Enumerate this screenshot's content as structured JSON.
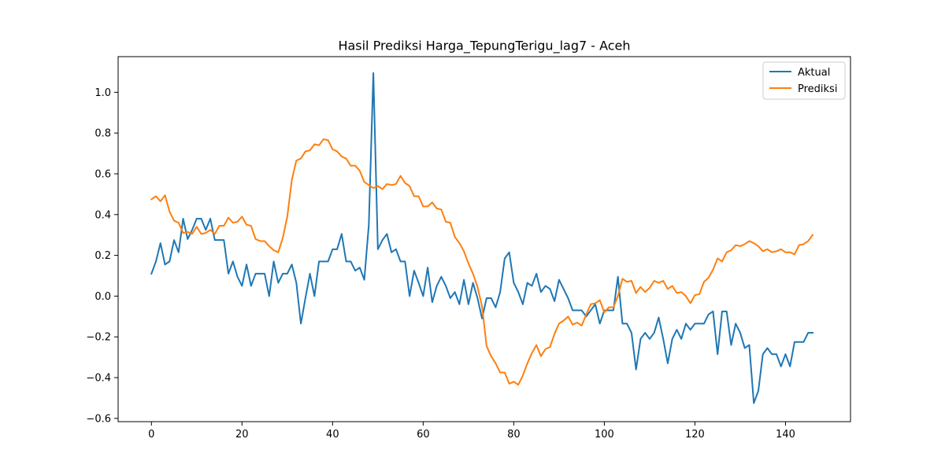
{
  "chart_data": {
    "type": "line",
    "title": "Hasil Prediksi Harga_TepungTerigu_lag7 - Aceh",
    "xlabel": "",
    "ylabel": "",
    "xlim": [
      -7.35,
      154.35
    ],
    "ylim": [
      -0.616,
      1.175
    ],
    "xticks": [
      0,
      20,
      40,
      60,
      80,
      100,
      120,
      140
    ],
    "xtick_labels": [
      "0",
      "20",
      "40",
      "60",
      "80",
      "100",
      "120",
      "140"
    ],
    "yticks": [
      -0.6,
      -0.4,
      -0.2,
      0.0,
      0.2,
      0.4,
      0.6,
      0.8,
      1.0
    ],
    "ytick_labels": [
      "−0.6",
      "−0.4",
      "−0.2",
      "0.0",
      "0.2",
      "0.4",
      "0.6",
      "0.8",
      "1.0"
    ],
    "grid": false,
    "legend_position": "top-right",
    "series": [
      {
        "name": "Aktual",
        "color": "#1f77b4",
        "values": [
          0.11,
          0.17,
          0.26,
          0.155,
          0.17,
          0.275,
          0.215,
          0.38,
          0.28,
          0.325,
          0.38,
          0.38,
          0.325,
          0.38,
          0.275,
          0.275,
          0.275,
          0.11,
          0.17,
          0.095,
          0.05,
          0.155,
          0.05,
          0.11,
          0.11,
          0.11,
          0.0,
          0.17,
          0.065,
          0.11,
          0.11,
          0.155,
          0.065,
          -0.135,
          -0.01,
          0.11,
          0.0,
          0.17,
          0.17,
          0.17,
          0.23,
          0.23,
          0.305,
          0.17,
          0.17,
          0.125,
          0.14,
          0.08,
          0.35,
          1.095,
          0.23,
          0.275,
          0.305,
          0.215,
          0.23,
          0.17,
          0.17,
          0.0,
          0.125,
          0.065,
          0.0,
          0.14,
          -0.03,
          0.05,
          0.095,
          0.05,
          -0.01,
          0.02,
          -0.04,
          0.08,
          -0.04,
          0.065,
          -0.01,
          -0.11,
          -0.01,
          -0.01,
          -0.055,
          0.02,
          0.185,
          0.215,
          0.065,
          0.02,
          -0.04,
          0.065,
          0.05,
          0.11,
          0.02,
          0.05,
          0.035,
          -0.025,
          0.08,
          0.035,
          -0.01,
          -0.07,
          -0.07,
          -0.07,
          -0.1,
          -0.07,
          -0.04,
          -0.135,
          -0.07,
          -0.07,
          -0.07,
          0.095,
          -0.135,
          -0.135,
          -0.18,
          -0.36,
          -0.21,
          -0.18,
          -0.21,
          -0.18,
          -0.105,
          -0.21,
          -0.33,
          -0.21,
          -0.165,
          -0.21,
          -0.135,
          -0.165,
          -0.135,
          -0.135,
          -0.135,
          -0.09,
          -0.075,
          -0.285,
          -0.075,
          -0.075,
          -0.24,
          -0.135,
          -0.18,
          -0.255,
          -0.24,
          -0.525,
          -0.465,
          -0.285,
          -0.255,
          -0.285,
          -0.285,
          -0.345,
          -0.285,
          -0.345,
          -0.225,
          -0.225,
          -0.225,
          -0.18,
          -0.18
        ]
      },
      {
        "name": "Prediksi",
        "color": "#ff7f0e",
        "values": [
          0.475,
          0.49,
          0.465,
          0.495,
          0.415,
          0.37,
          0.36,
          0.31,
          0.315,
          0.305,
          0.34,
          0.305,
          0.31,
          0.325,
          0.305,
          0.345,
          0.345,
          0.385,
          0.36,
          0.365,
          0.39,
          0.35,
          0.345,
          0.28,
          0.27,
          0.27,
          0.245,
          0.225,
          0.215,
          0.285,
          0.39,
          0.57,
          0.665,
          0.675,
          0.71,
          0.715,
          0.745,
          0.74,
          0.77,
          0.765,
          0.72,
          0.71,
          0.685,
          0.675,
          0.64,
          0.64,
          0.615,
          0.56,
          0.545,
          0.53,
          0.54,
          0.525,
          0.55,
          0.545,
          0.55,
          0.59,
          0.555,
          0.54,
          0.49,
          0.49,
          0.44,
          0.44,
          0.46,
          0.43,
          0.425,
          0.365,
          0.36,
          0.29,
          0.26,
          0.22,
          0.16,
          0.11,
          0.045,
          -0.05,
          -0.245,
          -0.295,
          -0.33,
          -0.375,
          -0.375,
          -0.43,
          -0.42,
          -0.435,
          -0.39,
          -0.33,
          -0.28,
          -0.24,
          -0.295,
          -0.26,
          -0.25,
          -0.185,
          -0.135,
          -0.12,
          -0.1,
          -0.14,
          -0.13,
          -0.145,
          -0.09,
          -0.04,
          -0.035,
          -0.02,
          -0.08,
          -0.055,
          -0.055,
          0.0,
          0.085,
          0.07,
          0.075,
          0.015,
          0.045,
          0.02,
          0.04,
          0.075,
          0.065,
          0.075,
          0.035,
          0.05,
          0.015,
          0.02,
          0.0,
          -0.035,
          0.005,
          0.01,
          0.07,
          0.09,
          0.13,
          0.185,
          0.17,
          0.215,
          0.225,
          0.25,
          0.245,
          0.255,
          0.27,
          0.26,
          0.245,
          0.22,
          0.23,
          0.215,
          0.22,
          0.23,
          0.215,
          0.215,
          0.205,
          0.25,
          0.255,
          0.27,
          0.3
        ]
      }
    ]
  }
}
